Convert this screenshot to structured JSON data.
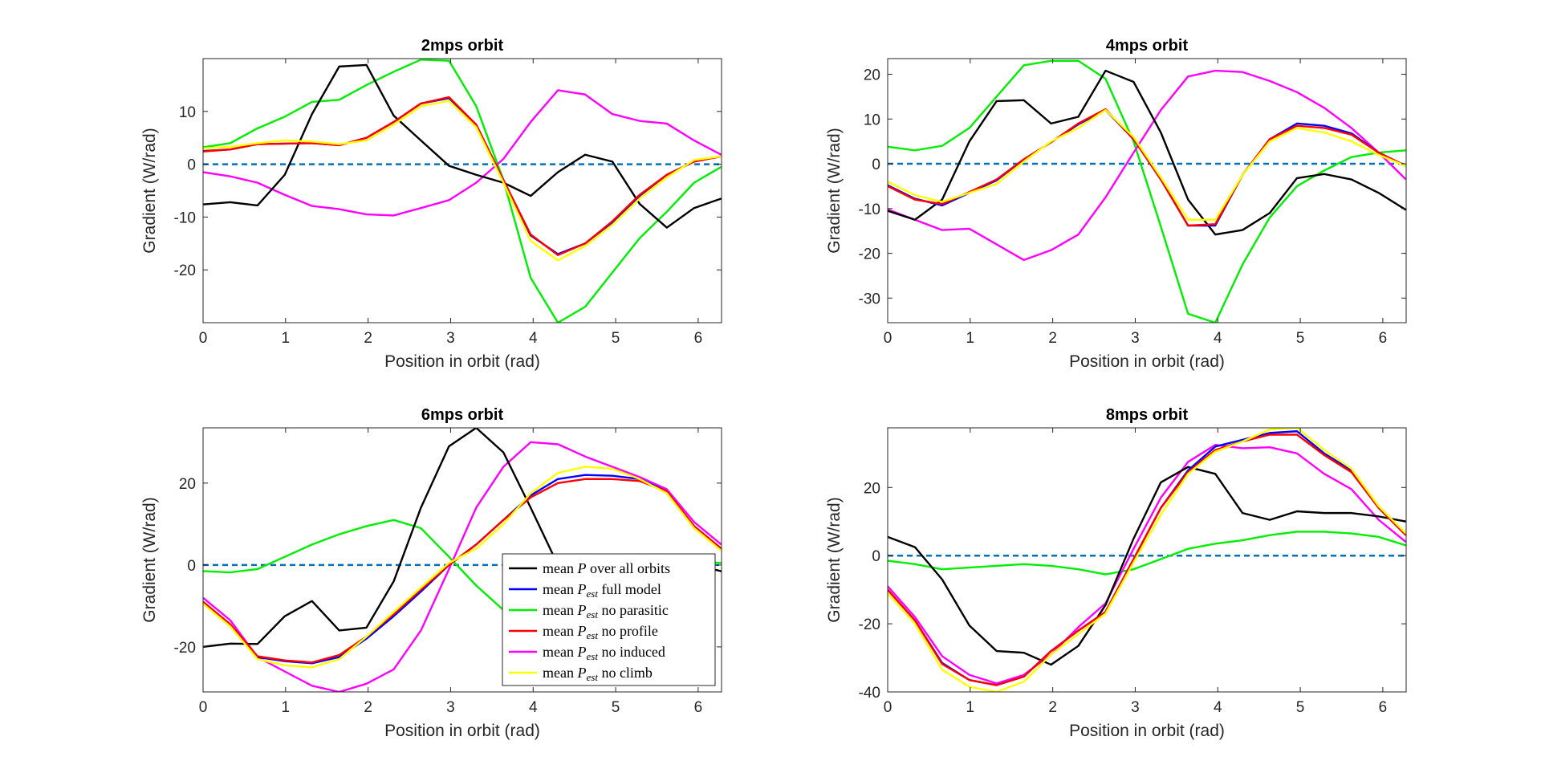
{
  "figure": {
    "colors": {
      "mean_P": "#000000",
      "full_model": "#0000ff",
      "no_parasitic": "#00ee00",
      "no_profile": "#ff0000",
      "no_induced": "#ff00ff",
      "no_climb": "#ffff00",
      "zero_line": "#0072bd"
    },
    "legend": {
      "subplot": 3,
      "location": "bottom-right",
      "entries": [
        {
          "key": "mean_P",
          "prefix": "mean ",
          "sym": "P",
          "sub": "",
          "suffix": " over all orbits"
        },
        {
          "key": "full_model",
          "prefix": "mean ",
          "sym": "P",
          "sub": "est",
          "suffix": " full model"
        },
        {
          "key": "no_parasitic",
          "prefix": "mean ",
          "sym": "P",
          "sub": "est",
          "suffix": " no parasitic"
        },
        {
          "key": "no_profile",
          "prefix": "mean ",
          "sym": "P",
          "sub": "est",
          "suffix": " no profile"
        },
        {
          "key": "no_induced",
          "prefix": "mean ",
          "sym": "P",
          "sub": "est",
          "suffix": " no induced"
        },
        {
          "key": "no_climb",
          "prefix": "mean ",
          "sym": "P",
          "sub": "est",
          "suffix": " no climb"
        }
      ]
    }
  },
  "chart_data": [
    {
      "type": "line",
      "title": "2mps orbit",
      "xlabel": "Position in orbit (rad)",
      "ylabel": "Gradient (W/rad)",
      "xlim": [
        0,
        6.283
      ],
      "ylim": [
        -30,
        20
      ],
      "xticks": [
        0,
        1,
        2,
        3,
        4,
        5,
        6
      ],
      "yticks": [
        -20,
        -10,
        0,
        10
      ],
      "grid": false,
      "x": [
        0,
        0.33,
        0.66,
        0.99,
        1.32,
        1.65,
        1.98,
        2.31,
        2.64,
        2.98,
        3.31,
        3.64,
        3.97,
        4.3,
        4.63,
        4.96,
        5.29,
        5.62,
        5.95,
        6.28
      ],
      "series": [
        {
          "key": "mean_P",
          "values": [
            -7.6,
            -7.2,
            -7.8,
            -2.0,
            9.5,
            18.5,
            18.8,
            9.2,
            4.5,
            -0.3,
            -2.0,
            -3.5,
            -6.0,
            -1.5,
            1.8,
            0.5,
            -7.5,
            -12.0,
            -8.3,
            -6.5
          ]
        },
        {
          "key": "full_model",
          "values": [
            2.5,
            2.8,
            3.8,
            3.9,
            4.0,
            3.6,
            5.0,
            8.0,
            11.5,
            12.5,
            7.5,
            -3.0,
            -13.5,
            -17.0,
            -15.0,
            -11.0,
            -6.0,
            -2.0,
            0.5,
            1.5
          ]
        },
        {
          "key": "no_parasitic",
          "values": [
            3.2,
            4.0,
            6.8,
            9.0,
            11.8,
            12.2,
            15.0,
            17.5,
            19.8,
            19.6,
            11.0,
            -3.0,
            -21.5,
            -30.0,
            -27.0,
            -20.5,
            -14.0,
            -9.0,
            -3.5,
            -0.5
          ]
        },
        {
          "key": "no_profile",
          "values": [
            2.4,
            2.8,
            3.8,
            3.9,
            4.0,
            3.6,
            5.0,
            8.0,
            11.5,
            12.7,
            7.5,
            -3.0,
            -13.3,
            -17.2,
            -15.0,
            -10.8,
            -5.8,
            -2.0,
            0.5,
            1.5
          ]
        },
        {
          "key": "no_induced",
          "values": [
            -1.5,
            -2.3,
            -3.5,
            -5.8,
            -7.9,
            -8.5,
            -9.5,
            -9.7,
            -8.3,
            -6.8,
            -3.5,
            1.0,
            8.0,
            14.0,
            13.2,
            9.5,
            8.2,
            7.7,
            4.5,
            1.8
          ]
        },
        {
          "key": "no_climb",
          "values": [
            3.0,
            3.3,
            4.0,
            4.5,
            4.3,
            3.8,
            4.5,
            7.5,
            11.0,
            12.0,
            7.0,
            -3.5,
            -14.5,
            -18.2,
            -15.5,
            -11.5,
            -6.5,
            -2.5,
            0.8,
            1.5
          ]
        }
      ]
    },
    {
      "type": "line",
      "title": "4mps orbit",
      "xlabel": "Position in orbit (rad)",
      "ylabel": "Gradient (W/rad)",
      "xlim": [
        0,
        6.283
      ],
      "ylim": [
        -35.5,
        23.5
      ],
      "xticks": [
        0,
        1,
        2,
        3,
        4,
        5,
        6
      ],
      "yticks": [
        -30,
        -20,
        -10,
        0,
        10,
        20
      ],
      "grid": false,
      "x": [
        0,
        0.33,
        0.66,
        0.99,
        1.32,
        1.65,
        1.98,
        2.31,
        2.64,
        2.98,
        3.31,
        3.64,
        3.97,
        4.3,
        4.63,
        4.96,
        5.29,
        5.62,
        5.95,
        6.28
      ],
      "series": [
        {
          "key": "mean_P",
          "values": [
            -10.5,
            -12.5,
            -8.0,
            5.0,
            14.0,
            14.2,
            9.0,
            10.5,
            20.8,
            18.3,
            7.0,
            -8.0,
            -15.8,
            -14.8,
            -11.0,
            -3.2,
            -2.3,
            -3.5,
            -6.5,
            -10.3
          ]
        },
        {
          "key": "full_model",
          "values": [
            -4.8,
            -7.8,
            -9.3,
            -6.5,
            -3.7,
            1.0,
            4.8,
            8.8,
            12.0,
            5.5,
            -3.5,
            -13.8,
            -13.8,
            -2.5,
            5.5,
            9.0,
            8.5,
            6.8,
            2.5,
            -0.5
          ]
        },
        {
          "key": "no_parasitic",
          "values": [
            3.8,
            3.0,
            4.0,
            8.0,
            15.0,
            22.0,
            23.0,
            23.0,
            19.0,
            5.0,
            -14.0,
            -33.5,
            -35.5,
            -22.5,
            -12.0,
            -5.0,
            -1.5,
            1.5,
            2.5,
            3.0
          ]
        },
        {
          "key": "no_profile",
          "values": [
            -5.0,
            -8.0,
            -9.0,
            -6.3,
            -3.5,
            1.0,
            4.8,
            9.0,
            12.2,
            5.5,
            -3.5,
            -13.8,
            -13.5,
            -2.5,
            5.5,
            8.5,
            8.0,
            6.5,
            2.5,
            -0.5
          ]
        },
        {
          "key": "no_induced",
          "values": [
            -10.2,
            -12.5,
            -14.8,
            -14.5,
            -18.0,
            -21.5,
            -19.3,
            -15.8,
            -7.5,
            2.5,
            12.0,
            19.5,
            20.8,
            20.5,
            18.5,
            16.0,
            12.5,
            8.0,
            2.5,
            -3.5
          ]
        },
        {
          "key": "no_climb",
          "values": [
            -4.0,
            -7.0,
            -8.5,
            -6.5,
            -4.5,
            0.5,
            5.0,
            8.0,
            12.0,
            6.0,
            -3.0,
            -12.5,
            -12.5,
            -2.5,
            5.0,
            8.0,
            7.0,
            5.0,
            2.0,
            -0.5
          ]
        }
      ]
    },
    {
      "type": "line",
      "title": "6mps orbit",
      "xlabel": "Position in orbit (rad)",
      "ylabel": "Gradient (W/rad)",
      "xlim": [
        0,
        6.283
      ],
      "ylim": [
        -31,
        33.5
      ],
      "xticks": [
        0,
        1,
        2,
        3,
        4,
        5,
        6
      ],
      "yticks": [
        -20,
        0,
        20
      ],
      "grid": false,
      "x": [
        0,
        0.33,
        0.66,
        0.99,
        1.32,
        1.65,
        1.98,
        2.31,
        2.64,
        2.98,
        3.31,
        3.64,
        3.97,
        4.3,
        4.63,
        4.96,
        5.29,
        5.62,
        5.95,
        6.28
      ],
      "series": [
        {
          "key": "mean_P",
          "values": [
            -20.0,
            -19.2,
            -19.3,
            -12.5,
            -8.8,
            -16.0,
            -15.3,
            -4.0,
            14.0,
            29.0,
            33.5,
            27.5,
            14.0,
            0.0,
            -5.3,
            -5.0,
            -2.0,
            1.5,
            0.0,
            -1.5
          ]
        },
        {
          "key": "full_model",
          "values": [
            -9.0,
            -14.5,
            -22.5,
            -23.5,
            -24.0,
            -22.5,
            -18.0,
            -12.5,
            -6.5,
            0.0,
            5.0,
            11.0,
            17.0,
            21.0,
            22.0,
            21.8,
            21.0,
            18.0,
            9.5,
            4.0
          ]
        },
        {
          "key": "no_parasitic",
          "values": [
            -1.5,
            -1.8,
            -1.0,
            2.0,
            5.0,
            7.5,
            9.5,
            11.0,
            9.0,
            2.0,
            -5.0,
            -11.0,
            -12.0,
            -9.0,
            -5.0,
            -2.0,
            0.0,
            1.5,
            1.0,
            0.5
          ]
        },
        {
          "key": "no_profile",
          "values": [
            -9.0,
            -14.5,
            -22.3,
            -23.3,
            -23.8,
            -22.0,
            -17.5,
            -12.0,
            -6.0,
            0.0,
            5.0,
            11.0,
            16.5,
            20.0,
            21.0,
            21.0,
            20.5,
            18.0,
            9.5,
            4.0
          ]
        },
        {
          "key": "no_induced",
          "values": [
            -8.0,
            -13.5,
            -22.5,
            -26.0,
            -29.5,
            -31.0,
            -29.0,
            -25.5,
            -16.0,
            -1.0,
            14.0,
            24.0,
            30.0,
            29.5,
            26.5,
            24.0,
            21.5,
            18.5,
            10.5,
            5.0
          ]
        },
        {
          "key": "no_climb",
          "values": [
            -9.5,
            -15.0,
            -23.0,
            -24.5,
            -25.0,
            -23.0,
            -17.5,
            -11.5,
            -5.5,
            0.5,
            4.0,
            10.0,
            17.5,
            22.5,
            24.0,
            23.5,
            21.0,
            17.5,
            9.0,
            3.5
          ]
        }
      ]
    },
    {
      "type": "line",
      "title": "8mps orbit",
      "xlabel": "Position in orbit (rad)",
      "ylabel": "Gradient (W/rad)",
      "xlim": [
        0,
        6.283
      ],
      "ylim": [
        -40,
        37.5
      ],
      "xticks": [
        0,
        1,
        2,
        3,
        4,
        5,
        6
      ],
      "yticks": [
        -40,
        -20,
        0,
        20
      ],
      "grid": false,
      "x": [
        0,
        0.33,
        0.66,
        0.99,
        1.32,
        1.65,
        1.98,
        2.31,
        2.64,
        2.98,
        3.31,
        3.64,
        3.97,
        4.3,
        4.63,
        4.96,
        5.29,
        5.62,
        5.95,
        6.28
      ],
      "series": [
        {
          "key": "mean_P",
          "values": [
            5.5,
            2.5,
            -7.0,
            -20.5,
            -28.0,
            -28.5,
            -32.0,
            -26.5,
            -14.5,
            5.0,
            21.5,
            26.0,
            24.0,
            12.5,
            10.5,
            13.0,
            12.5,
            12.5,
            11.5,
            10.0
          ]
        },
        {
          "key": "full_model",
          "values": [
            -10.0,
            -19.0,
            -31.5,
            -36.5,
            -38.0,
            -35.5,
            -28.0,
            -22.0,
            -16.5,
            -1.0,
            14.0,
            25.0,
            32.0,
            34.0,
            36.0,
            36.5,
            30.0,
            25.0,
            14.0,
            6.0
          ]
        },
        {
          "key": "no_parasitic",
          "values": [
            -1.5,
            -2.5,
            -4.0,
            -3.5,
            -3.0,
            -2.5,
            -3.0,
            -4.0,
            -5.5,
            -4.0,
            -1.0,
            2.0,
            3.5,
            4.5,
            6.0,
            7.0,
            7.0,
            6.5,
            5.5,
            3.0
          ]
        },
        {
          "key": "no_profile",
          "values": [
            -10.0,
            -19.0,
            -31.8,
            -36.5,
            -38.0,
            -35.5,
            -28.0,
            -22.0,
            -16.5,
            -1.0,
            14.0,
            24.5,
            31.0,
            33.5,
            35.5,
            35.5,
            29.5,
            24.5,
            14.0,
            6.0
          ]
        },
        {
          "key": "no_induced",
          "values": [
            -9.0,
            -18.0,
            -29.5,
            -35.0,
            -37.5,
            -35.0,
            -29.0,
            -21.0,
            -14.0,
            2.0,
            17.0,
            27.5,
            32.5,
            31.5,
            31.8,
            30.0,
            24.0,
            19.5,
            10.5,
            4.0
          ]
        },
        {
          "key": "no_climb",
          "values": [
            -11.0,
            -20.0,
            -33.5,
            -38.5,
            -40.0,
            -37.0,
            -29.0,
            -23.0,
            -17.0,
            -2.0,
            12.0,
            24.0,
            30.5,
            33.5,
            37.0,
            37.5,
            31.0,
            25.5,
            14.5,
            6.5
          ]
        }
      ]
    }
  ]
}
